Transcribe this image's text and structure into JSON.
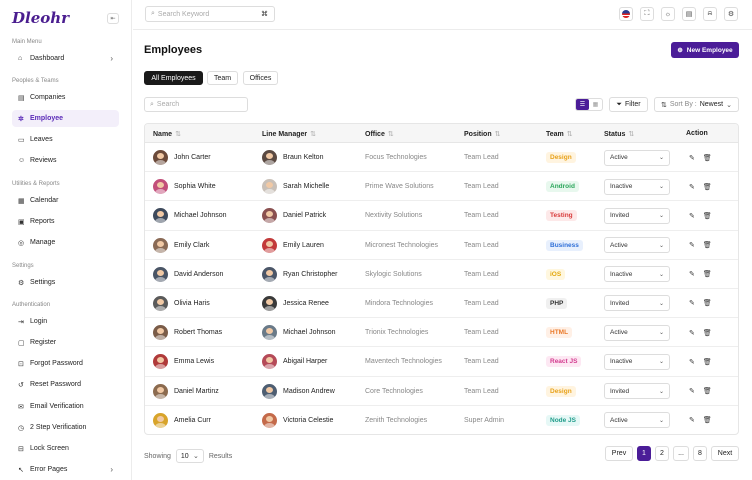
{
  "brand": {
    "logo_text": "Dleohr",
    "accent": "#4b1d98"
  },
  "sidebar": {
    "sections": [
      {
        "label": "Main Menu"
      },
      {
        "label": "Peoples & Teams"
      },
      {
        "label": "Utilities & Reports"
      },
      {
        "label": "Settings"
      },
      {
        "label": "Authentication"
      }
    ],
    "items": [
      {
        "label": "Dashboard",
        "icon": "home-icon"
      },
      {
        "label": "Companies",
        "icon": "building-icon"
      },
      {
        "label": "Employee",
        "icon": "users-icon"
      },
      {
        "label": "Leaves",
        "icon": "leave-icon"
      },
      {
        "label": "Reviews",
        "icon": "user-icon"
      },
      {
        "label": "Calendar",
        "icon": "calendar-icon"
      },
      {
        "label": "Reports",
        "icon": "report-icon"
      },
      {
        "label": "Manage",
        "icon": "manage-icon"
      },
      {
        "label": "Settings",
        "icon": "gear-icon"
      },
      {
        "label": "Login",
        "icon": "login-icon"
      },
      {
        "label": "Register",
        "icon": "register-icon"
      },
      {
        "label": "Forgot Password",
        "icon": "forgot-icon"
      },
      {
        "label": "Reset Password",
        "icon": "reset-icon"
      },
      {
        "label": "Email Verification",
        "icon": "email-icon"
      },
      {
        "label": "2 Step Verification",
        "icon": "two-step-icon"
      },
      {
        "label": "Lock Screen",
        "icon": "lock-icon"
      },
      {
        "label": "Error Pages",
        "icon": "error-icon"
      }
    ]
  },
  "topbar": {
    "search_placeholder": "Search Keyword",
    "shortcut": "⌘"
  },
  "page": {
    "title": "Employees",
    "new_button": "New Employee"
  },
  "tabs": [
    "All Employees",
    "Team",
    "Offices"
  ],
  "toolbar": {
    "search_placeholder": "Search",
    "filter_label": "Filter",
    "sort_label": "Sort By :",
    "sort_value": "Newest"
  },
  "table": {
    "columns": [
      "Name",
      "Line Manager",
      "Office",
      "Position",
      "Team",
      "Status",
      "Action"
    ],
    "rows": [
      {
        "name": "John Carter",
        "manager": "Braun Kelton",
        "office": "Focus Technologies",
        "position": "Team Lead",
        "team": "Design",
        "status": "Active"
      },
      {
        "name": "Sophia White",
        "manager": "Sarah Michelle",
        "office": "Prime Wave Solutions",
        "position": "Team Lead",
        "team": "Android",
        "status": "Inactive"
      },
      {
        "name": "Michael Johnson",
        "manager": "Daniel Patrick",
        "office": "Nextivity Solutions",
        "position": "Team Lead",
        "team": "Testing",
        "status": "Invited"
      },
      {
        "name": "Emily Clark",
        "manager": "Emily Lauren",
        "office": "Micronest Technologies",
        "position": "Team Lead",
        "team": "Business",
        "status": "Active"
      },
      {
        "name": "David Anderson",
        "manager": "Ryan Christopher",
        "office": "Skylogic Solutions",
        "position": "Team Lead",
        "team": "iOS",
        "status": "Inactive"
      },
      {
        "name": "Olivia Haris",
        "manager": "Jessica Renee",
        "office": "Mindora Technologies",
        "position": "Team Lead",
        "team": "PHP",
        "status": "Invited"
      },
      {
        "name": "Robert Thomas",
        "manager": "Michael Johnson",
        "office": "Trionix Technologies",
        "position": "Team Lead",
        "team": "HTML",
        "status": "Active"
      },
      {
        "name": "Emma Lewis",
        "manager": "Abigail Harper",
        "office": "Maventech Technologies",
        "position": "Team Lead",
        "team": "React JS",
        "status": "Inactive"
      },
      {
        "name": "Daniel Martinz",
        "manager": "Madison Andrew",
        "office": "Core Technologies",
        "position": "Team Lead",
        "team": "Design",
        "status": "Invited"
      },
      {
        "name": "Amelia Curr",
        "manager": "Victoria Celestie",
        "office": "Zenith Technologies",
        "position": "Super Admin",
        "team": "Node JS",
        "status": "Active"
      }
    ]
  },
  "pagination": {
    "showing_label": "Showing",
    "per_page": "10",
    "results_label": "Results",
    "prev": "Prev",
    "pages": [
      "1",
      "2",
      "...",
      "8"
    ],
    "next": "Next"
  }
}
